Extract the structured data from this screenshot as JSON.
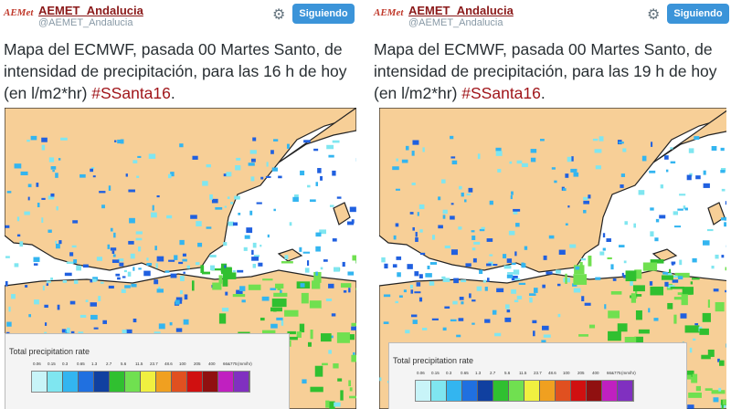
{
  "tweets": [
    {
      "logo": "AEMet",
      "name": "AEMET_Andalucia",
      "handle": "@AEMET_Andalucia",
      "button": "Siguiendo",
      "text": "Mapa del ECMWF, pasada 00 Martes Santo, de intensidad de precipitación, para las 16 h de hoy (en l/m2*hr) ",
      "hashtag": "#SSanta16",
      "text_end": ".",
      "legend": {
        "title": "Total precipitation rate",
        "labels": [
          "0.06",
          "0.15",
          "0.3",
          "0.65",
          "1.3",
          "2.7",
          "5.6",
          "11.5",
          "23.7",
          "48.6",
          "100",
          "205",
          "400",
          "66&775"
        ],
        "unit": "(mm/hr)"
      }
    },
    {
      "logo": "AEMet",
      "name": "AEMET_Andalucia",
      "handle": "@AEMET_Andalucia",
      "button": "Siguiendo",
      "text": "Mapa del ECMWF, pasada 00 Martes Santo, de intensidad de precipitación, para las 19 h de hoy (en l/m2*hr) ",
      "hashtag": "#SSanta16",
      "text_end": ".",
      "legend": {
        "title": "Total precipitation rate",
        "labels": [
          "0.06",
          "0.15",
          "0.3",
          "0.65",
          "1.3",
          "2.7",
          "5.6",
          "11.5",
          "23.7",
          "48.6",
          "100",
          "205",
          "400",
          "66&775"
        ],
        "unit": "(mm/hr)"
      }
    }
  ]
}
